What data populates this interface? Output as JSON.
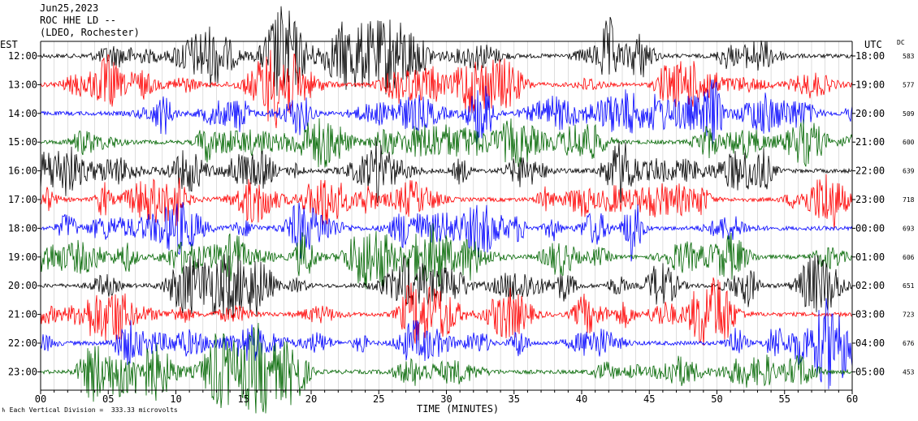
{
  "header": {
    "date": "Jun25,2023",
    "station": "ROC HHE LD --",
    "network": "(LDEO, Rochester)"
  },
  "left_timezone": "EST",
  "right_timezone": "UTC",
  "dc_header": "DC",
  "footer": {
    "scale_note": "Each Vertical Division =  333.33 microvolts",
    "xlabel": "TIME (MINUTES)"
  },
  "colors": {
    "cycle": [
      "#000000",
      "#ff0000",
      "#0000ff",
      "#006600"
    ]
  },
  "chart_data": {
    "type": "line",
    "title": "",
    "xlabel": "TIME (MINUTES)",
    "xlim": [
      0,
      60
    ],
    "x_ticks": [
      "00",
      "05",
      "10",
      "15",
      "20",
      "25",
      "30",
      "35",
      "40",
      "45",
      "50",
      "55",
      "60"
    ],
    "grid": "vertical lines at each minute",
    "series": [
      {
        "left": "12:00",
        "right": "18:00",
        "dc": "583",
        "color": "#000000"
      },
      {
        "left": "13:00",
        "right": "19:00",
        "dc": "577",
        "color": "#ff0000"
      },
      {
        "left": "14:00",
        "right": "20:00",
        "dc": "509",
        "color": "#0000ff"
      },
      {
        "left": "15:00",
        "right": "21:00",
        "dc": "600",
        "color": "#006600"
      },
      {
        "left": "16:00",
        "right": "22:00",
        "dc": "639",
        "color": "#000000"
      },
      {
        "left": "17:00",
        "right": "23:00",
        "dc": "718",
        "color": "#ff0000"
      },
      {
        "left": "18:00",
        "right": "00:00",
        "dc": "693",
        "color": "#0000ff"
      },
      {
        "left": "19:00",
        "right": "01:00",
        "dc": "606",
        "color": "#006600"
      },
      {
        "left": "20:00",
        "right": "02:00",
        "dc": "651",
        "color": "#000000"
      },
      {
        "left": "21:00",
        "right": "03:00",
        "dc": "723",
        "color": "#ff0000"
      },
      {
        "left": "22:00",
        "right": "04:00",
        "dc": "676",
        "color": "#0000ff"
      },
      {
        "left": "23:00",
        "right": "05:00",
        "dc": "453",
        "color": "#006600"
      }
    ]
  }
}
